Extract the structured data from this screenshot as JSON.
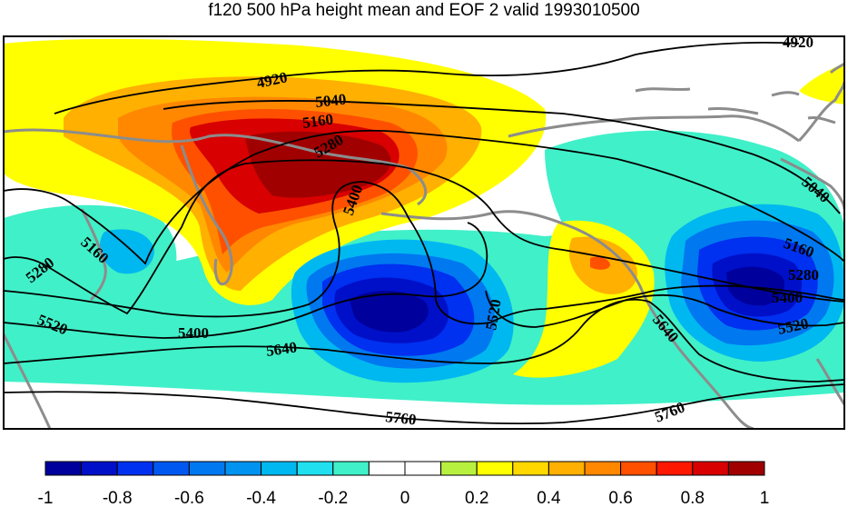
{
  "title": "f120 500 hPa height mean and EOF 2 valid 1993010500",
  "contour_labels": [
    "4920",
    "5040",
    "5160",
    "5280",
    "5400",
    "5520",
    "5640",
    "5760"
  ],
  "colorbar": {
    "colors": [
      "#00009c",
      "#0010c8",
      "#0030f0",
      "#0058f0",
      "#0078f0",
      "#0094f0",
      "#00b8f0",
      "#20e0f0",
      "#40f0c8",
      "#ffffff",
      "#ffffff",
      "#b8f040",
      "#ffff00",
      "#ffd800",
      "#ffb000",
      "#ff8800",
      "#ff5000",
      "#ff1800",
      "#d80000",
      "#a00000"
    ],
    "tick_labels": [
      "-1",
      "-0.8",
      "-0.6",
      "-0.4",
      "-0.2",
      "0",
      "0.2",
      "0.4",
      "0.6",
      "0.8",
      "1"
    ]
  }
}
